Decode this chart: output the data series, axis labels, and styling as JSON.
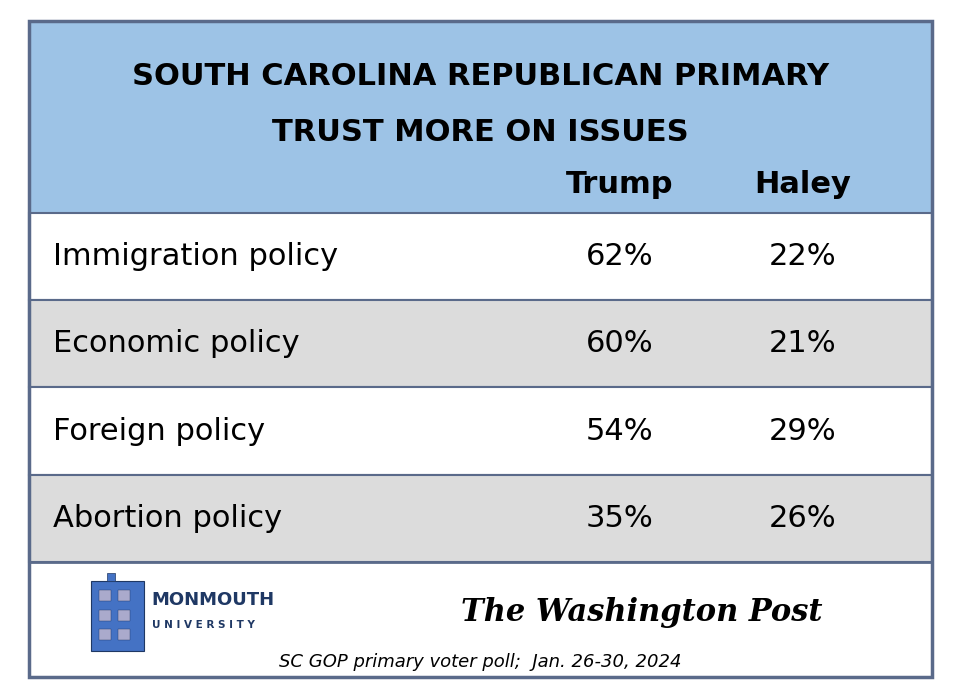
{
  "title_line1": "SOUTH CAROLINA REPUBLICAN PRIMARY",
  "title_line2": "TRUST MORE ON ISSUES",
  "header_bg": "#9DC3E6",
  "col_headers": [
    "Trump",
    "Haley"
  ],
  "rows": [
    {
      "label": "Immigration policy",
      "trump": "62%",
      "haley": "22%",
      "bg": "#FFFFFF"
    },
    {
      "label": "Economic policy",
      "trump": "60%",
      "haley": "21%",
      "bg": "#DCDCDC"
    },
    {
      "label": "Foreign policy",
      "trump": "54%",
      "haley": "29%",
      "bg": "#FFFFFF"
    },
    {
      "label": "Abortion policy",
      "trump": "35%",
      "haley": "26%",
      "bg": "#DCDCDC"
    }
  ],
  "footer_text": "SC GOP primary voter poll;  Jan. 26-30, 2024",
  "border_color": "#5A6A8A",
  "outer_bg": "#FFFFFF",
  "title_fontsize": 22,
  "header_fontsize": 22,
  "cell_fontsize": 22,
  "footer_fontsize": 13,
  "monmouth_color": "#1F3864",
  "monmouth_name": "MONMOUTH",
  "monmouth_sub": "U N I V E R S I T Y",
  "wapo_text": "The Washington Post"
}
